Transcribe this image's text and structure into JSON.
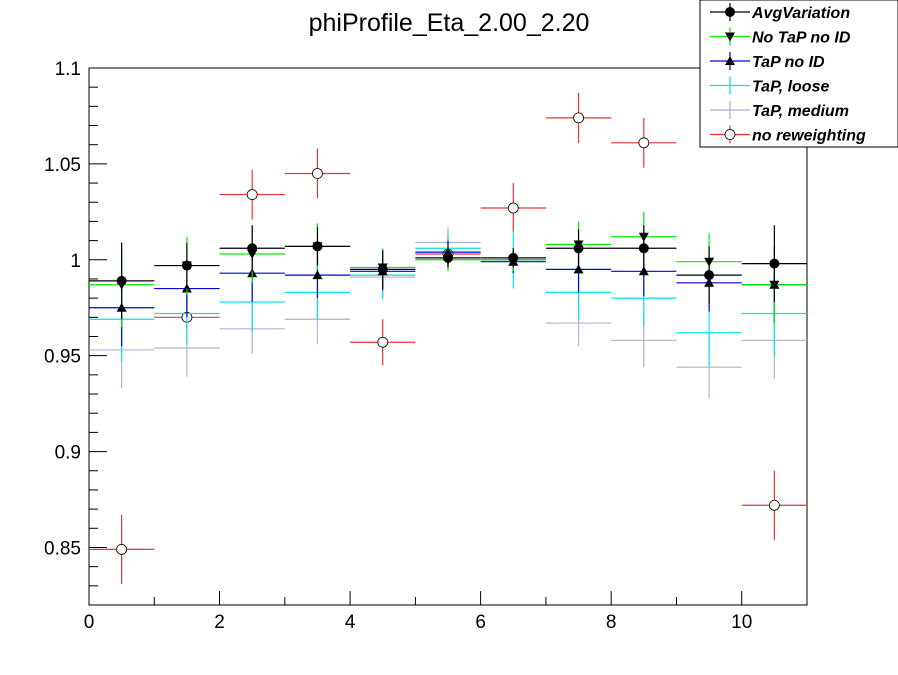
{
  "chart_data": {
    "type": "scatter",
    "title": "phiProfile_Eta_2.00_2.20",
    "xlabel": "",
    "ylabel": "",
    "xlim": [
      0,
      11
    ],
    "ylim": [
      0.82,
      1.1
    ],
    "x_ticks": [
      0,
      2,
      4,
      6,
      8,
      10
    ],
    "x_tick_labels": [
      "0",
      "2",
      "4",
      "6",
      "8",
      "10"
    ],
    "y_ticks": [
      0.85,
      0.9,
      0.95,
      1.0,
      1.05,
      1.1
    ],
    "y_tick_labels": [
      "0.85",
      "0.9",
      "0.95",
      "1",
      "1.05",
      "1.1"
    ],
    "x": [
      0.5,
      1.5,
      2.5,
      3.5,
      4.5,
      5.5,
      6.5,
      7.5,
      8.5,
      9.5,
      10.5
    ],
    "bin_halfwidth": 0.5,
    "legend_position": "top-right",
    "series": [
      {
        "name": "AvgVariation",
        "color": "#000000",
        "marker": "filled-circle",
        "values": [
          0.989,
          0.997,
          1.006,
          1.007,
          0.995,
          1.001,
          1.001,
          1.006,
          1.006,
          0.992,
          0.998
        ],
        "errors": [
          0.02,
          0.012,
          0.012,
          0.01,
          0.01,
          0.005,
          0.005,
          0.01,
          0.012,
          0.015,
          0.02
        ]
      },
      {
        "name": "No TaP no ID",
        "color": "#00ee00",
        "marker": "filled-triangle-down",
        "values": [
          0.987,
          0.997,
          1.003,
          1.007,
          0.996,
          1.0,
          1.0,
          1.008,
          1.012,
          0.999,
          0.987
        ],
        "errors": [
          0.022,
          0.015,
          0.015,
          0.012,
          0.01,
          0.006,
          0.006,
          0.012,
          0.013,
          0.015,
          0.02
        ]
      },
      {
        "name": "TaP no ID",
        "color": "#0000ee",
        "marker": "filled-triangle-up",
        "values": [
          0.975,
          0.985,
          0.993,
          0.992,
          0.994,
          1.004,
          0.999,
          0.995,
          0.994,
          0.988,
          0.987
        ],
        "errors": [
          0.02,
          0.015,
          0.015,
          0.012,
          0.01,
          0.006,
          0.006,
          0.012,
          0.013,
          0.015,
          0.02
        ]
      },
      {
        "name": "TaP, loose",
        "color": "#00e5e5",
        "marker": "none",
        "values": [
          0.969,
          0.972,
          0.978,
          0.983,
          0.992,
          1.006,
          1.0,
          0.983,
          0.98,
          0.962,
          0.972
        ],
        "errors": [
          0.022,
          0.016,
          0.016,
          0.014,
          0.012,
          0.008,
          0.015,
          0.014,
          0.015,
          0.018,
          0.022
        ]
      },
      {
        "name": "TaP, medium",
        "color": "#b0b0d0",
        "marker": "none",
        "values": [
          0.953,
          0.954,
          0.964,
          0.969,
          0.991,
          1.009,
          1.0,
          0.967,
          0.958,
          0.944,
          0.958
        ],
        "errors": [
          0.02,
          0.015,
          0.013,
          0.013,
          0.012,
          0.008,
          0.007,
          0.012,
          0.014,
          0.016,
          0.02
        ]
      },
      {
        "name": "no reweighting",
        "color": "#ee3333",
        "marker": "open-circle",
        "values": [
          0.849,
          0.97,
          1.034,
          1.045,
          0.957,
          1.003,
          1.027,
          1.074,
          1.061,
          null,
          0.872
        ],
        "errors": [
          0.018,
          0.013,
          0.013,
          0.013,
          0.012,
          0.008,
          0.013,
          0.013,
          0.013,
          null,
          0.018
        ]
      }
    ]
  }
}
